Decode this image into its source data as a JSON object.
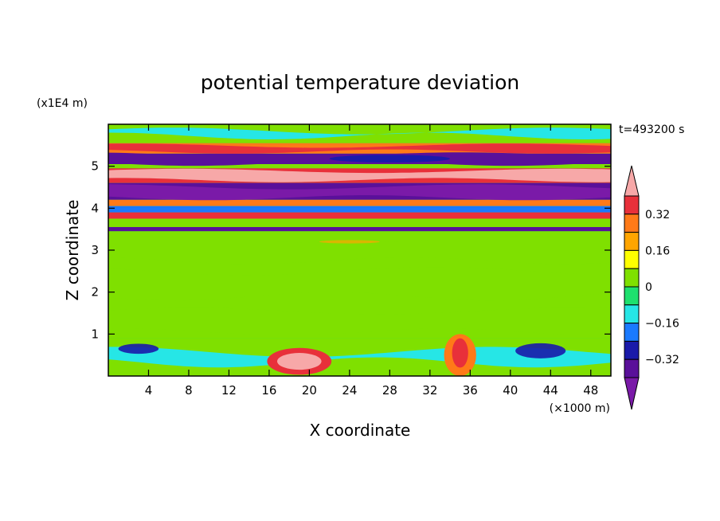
{
  "chart_data": {
    "type": "heatmap",
    "title": "potential temperature deviation",
    "xlabel": "X coordinate",
    "ylabel": "Z coordinate",
    "x_unit": "(×1000 m)",
    "y_unit": "(x1E4 m)",
    "time_label": "t=493200 s",
    "xlim": [
      0,
      50
    ],
    "ylim": [
      0,
      6
    ],
    "x_ticks": [
      "4",
      "8",
      "12",
      "16",
      "20",
      "24",
      "28",
      "32",
      "36",
      "40",
      "44",
      "48"
    ],
    "y_ticks": [
      "1",
      "2",
      "3",
      "4",
      "5"
    ],
    "colorbar": {
      "labels": [
        "0.32",
        "0.16",
        "0",
        "−0.16",
        "−0.32"
      ],
      "levels": [
        0.32,
        0.16,
        0,
        -0.16,
        -0.32
      ],
      "colors": [
        "#f7a8a8",
        "#e8303a",
        "#ff7a18",
        "#ffa500",
        "#ffff00",
        "#7fe000",
        "#1ee06e",
        "#26e6e6",
        "#1a7aff",
        "#1a1aaa",
        "#5a109a",
        "#7a1aa8"
      ]
    },
    "bands": [
      {
        "z": [
          5.55,
          6.0
        ],
        "value": "0.05"
      },
      {
        "z": [
          5.3,
          5.55
        ],
        "value": "0.3"
      },
      {
        "z": [
          5.05,
          5.3
        ],
        "value": "-0.4"
      },
      {
        "z": [
          4.95,
          5.05
        ],
        "value": "0.0"
      },
      {
        "z": [
          4.6,
          4.95
        ],
        "value": "0.35"
      },
      {
        "z": [
          4.2,
          4.6
        ],
        "value": "-0.4"
      },
      {
        "z": [
          4.05,
          4.2
        ],
        "value": "0.3"
      },
      {
        "z": [
          3.9,
          4.05
        ],
        "value": "-0.2"
      },
      {
        "z": [
          3.75,
          3.9
        ],
        "value": "0.35"
      },
      {
        "z": [
          3.55,
          3.75
        ],
        "value": "0.05"
      },
      {
        "z": [
          3.45,
          3.55
        ],
        "value": "-0.4"
      },
      {
        "z": [
          0.9,
          3.45
        ],
        "value": "0.0"
      },
      {
        "z": [
          0.0,
          0.9
        ],
        "value": "0.05"
      }
    ]
  }
}
